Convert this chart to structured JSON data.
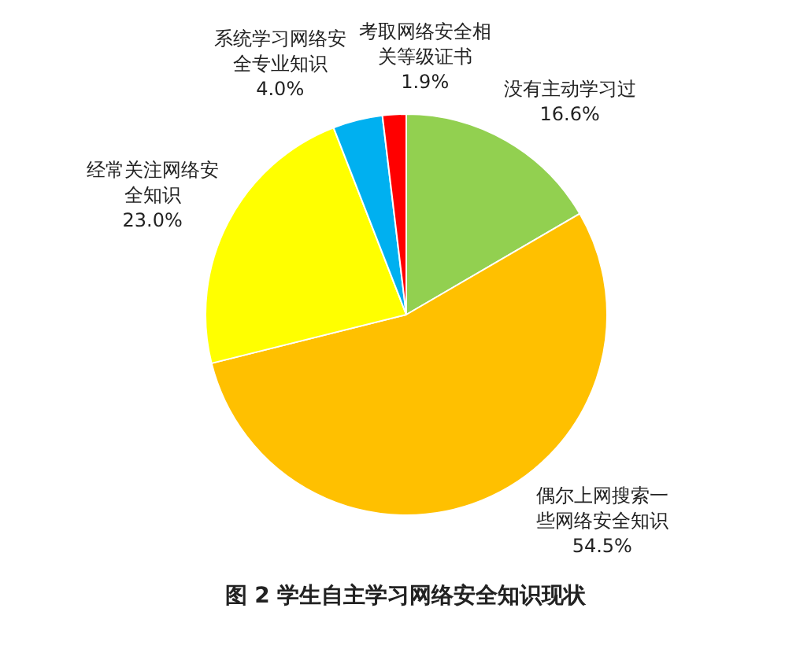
{
  "chart_data": {
    "type": "pie",
    "title": "图 2  学生自主学习网络安全知识现状",
    "categories": [
      "没有主动学习过",
      "偶尔上网搜索一些网络安全知识",
      "经常关注网络安全知识",
      "系统学习网络安全专业知识",
      "考取网络安全相关等级证书"
    ],
    "values": [
      16.6,
      54.5,
      23.0,
      4.0,
      1.9
    ],
    "value_labels": [
      "16.6%",
      "54.5%",
      "23.0%",
      "4.0%",
      "1.9%"
    ],
    "colors": [
      "#92d050",
      "#ffc000",
      "#ffff00",
      "#00b0f0",
      "#ff0000"
    ],
    "legend": false
  }
}
